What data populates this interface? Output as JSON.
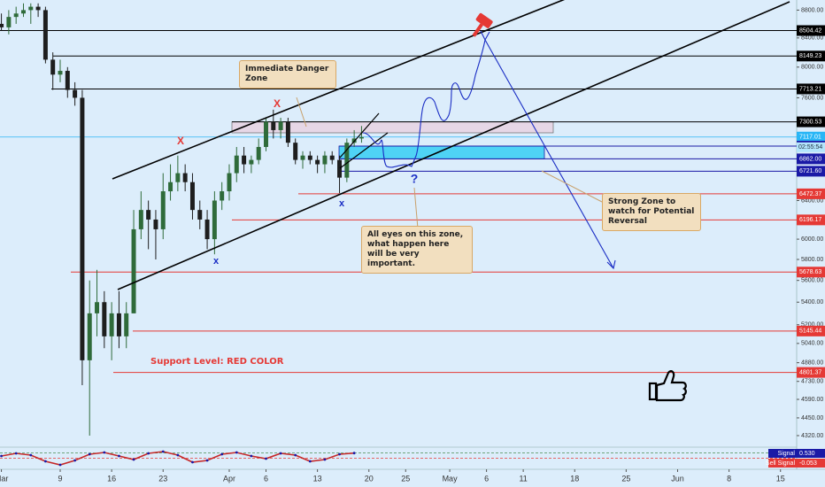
{
  "chart_data": {
    "type": "candlestick",
    "log_scale": true,
    "up_color": "#2f6b3a",
    "down_color": "#1e1e1e",
    "x": [
      0,
      1,
      2,
      3,
      4,
      5,
      6,
      7,
      8,
      9,
      10,
      11,
      12,
      13,
      14,
      15,
      16,
      17,
      18,
      19,
      20,
      21,
      22,
      23,
      24,
      25,
      26,
      27,
      28,
      29,
      30,
      31,
      32,
      33,
      34,
      35,
      36,
      37,
      38,
      39,
      40,
      41,
      42,
      43,
      44,
      45,
      46,
      47,
      48,
      49
    ],
    "open": [
      8600,
      8550,
      8700,
      8750,
      8800,
      8850,
      8800,
      8100,
      7900,
      7950,
      7700,
      7600,
      4900,
      5300,
      5400,
      5100,
      5300,
      5100,
      5300,
      6100,
      6300,
      6200,
      6100,
      6500,
      6600,
      6700,
      6600,
      6300,
      6200,
      6000,
      6400,
      6500,
      6700,
      6900,
      6800,
      6850,
      7000,
      7300,
      7200,
      7300,
      7050,
      6850,
      6900,
      6850,
      6800,
      6900,
      6850,
      6650,
      7050,
      7100
    ],
    "high": [
      8750,
      8800,
      8850,
      8900,
      8900,
      8900,
      8850,
      8200,
      8100,
      8000,
      7800,
      7700,
      5600,
      5700,
      5500,
      5400,
      5500,
      5400,
      6300,
      6500,
      6400,
      6300,
      6700,
      6800,
      6900,
      6800,
      6700,
      6400,
      6300,
      6500,
      6600,
      6800,
      7000,
      7000,
      6900,
      7100,
      7350,
      7450,
      7350,
      7350,
      7100,
      6950,
      6950,
      6900,
      6950,
      6950,
      6900,
      7100,
      7200,
      7250
    ],
    "low": [
      8500,
      8450,
      8600,
      8700,
      8600,
      8700,
      8050,
      7700,
      7800,
      7600,
      7500,
      4700,
      4320,
      5100,
      5000,
      4900,
      5000,
      5000,
      5300,
      6000,
      5900,
      5800,
      6000,
      6400,
      6500,
      6500,
      6200,
      6100,
      5900,
      5850,
      6300,
      6400,
      6600,
      6700,
      6700,
      6800,
      6950,
      7100,
      7100,
      7000,
      6800,
      6750,
      6800,
      6700,
      6700,
      6800,
      6480,
      6600,
      7000,
      7050
    ],
    "close": [
      8550,
      8700,
      8750,
      8800,
      8850,
      8800,
      8100,
      7900,
      7950,
      7700,
      7600,
      4900,
      5300,
      5400,
      5100,
      5300,
      5100,
      5300,
      6100,
      6300,
      6200,
      6100,
      6500,
      6600,
      6700,
      6600,
      6300,
      6200,
      6000,
      6400,
      6500,
      6700,
      6900,
      6800,
      6850,
      7000,
      7300,
      7200,
      7300,
      7050,
      6850,
      6900,
      6850,
      6800,
      6900,
      6850,
      6650,
      7050,
      7100,
      7117.01
    ],
    "xlim": [
      -0.19,
      108.2
    ],
    "ylim": [
      4250,
      8950
    ],
    "xticks": [
      {
        "value": 0,
        "label": "Mar"
      },
      {
        "value": 8,
        "label": "9"
      },
      {
        "value": 15,
        "label": "16"
      },
      {
        "value": 22,
        "label": "23"
      },
      {
        "value": 31,
        "label": "Apr"
      },
      {
        "value": 36,
        "label": "6"
      },
      {
        "value": 43,
        "label": "13"
      },
      {
        "value": 50,
        "label": "20"
      },
      {
        "value": 55,
        "label": "25"
      },
      {
        "value": 61,
        "label": "May"
      },
      {
        "value": 66,
        "label": "6"
      },
      {
        "value": 71,
        "label": "11"
      },
      {
        "value": 78,
        "label": "18"
      },
      {
        "value": 85,
        "label": "25"
      },
      {
        "value": 92,
        "label": "Jun"
      },
      {
        "value": 99,
        "label": "8"
      },
      {
        "value": 106,
        "label": "15"
      }
    ],
    "yticks": [
      {
        "value": 8800,
        "label": "8800.00"
      },
      {
        "value": 8400,
        "label": "8400.00"
      },
      {
        "value": 8000,
        "label": "8000.00"
      },
      {
        "value": 7600,
        "label": "7600.00"
      },
      {
        "value": 6400,
        "label": "6400.00"
      },
      {
        "value": 6000,
        "label": "6000.00"
      },
      {
        "value": 5800,
        "label": "5800.00"
      },
      {
        "value": 5600,
        "label": "5600.00"
      },
      {
        "value": 5400,
        "label": "5400.00"
      },
      {
        "value": 5200,
        "label": "5200.00"
      },
      {
        "value": 5040,
        "label": "5040.00"
      },
      {
        "value": 4880,
        "label": "4880.00"
      },
      {
        "value": 4730,
        "label": "4730.00"
      },
      {
        "value": 4590,
        "label": "4590.00"
      },
      {
        "value": 4450,
        "label": "4450.00"
      },
      {
        "value": 4320,
        "label": "4320.00"
      }
    ],
    "levels": [
      {
        "value": 8504.42,
        "color": "#000000"
      },
      {
        "value": 8149.23,
        "color": "#000000"
      },
      {
        "value": 7713.21,
        "color": "#000000"
      },
      {
        "value": 7300.53,
        "color": "#000000"
      },
      {
        "value": 7117.01,
        "color": "#29b6f6"
      },
      {
        "value": 7010.25,
        "color": "#1a1aa6"
      },
      {
        "value": 6862,
        "label": "6862.00",
        "color": "#1a1aa6"
      },
      {
        "value": 6721.6,
        "label": "6721.60",
        "color": "#1a1aa6"
      },
      {
        "value": 6472.37,
        "color": "#e53935"
      },
      {
        "value": 6196.17,
        "color": "#e53935"
      },
      {
        "value": 5678.63,
        "color": "#e53935"
      },
      {
        "value": 5145.44,
        "color": "#e53935"
      },
      {
        "value": 4801.37,
        "color": "#e53935"
      }
    ],
    "countdown": "02:55:54",
    "annotations": [
      "Immediate Danger Zone",
      "All eyes on this zone, what happen here will be very important.",
      "Strong Zone to watch for Potential Reversal",
      "Support Level: RED COLOR"
    ],
    "markers": [
      "X",
      "X",
      "x",
      "x",
      "?"
    ],
    "indicator": {
      "x": [
        0,
        2,
        4,
        6,
        8,
        10,
        12,
        14,
        16,
        18,
        20,
        22,
        24,
        26,
        28,
        30,
        32,
        34,
        36,
        38,
        40,
        42,
        44,
        46,
        48
      ],
      "values": [
        0.2,
        0.5,
        0.3,
        -0.4,
        -0.8,
        -0.3,
        0.4,
        0.6,
        0.2,
        -0.2,
        0.5,
        0.7,
        0.3,
        -0.5,
        -0.3,
        0.4,
        0.6,
        0.2,
        -0.1,
        0.5,
        0.3,
        -0.4,
        -0.2,
        0.4,
        0.53
      ],
      "ylim": [
        -1,
        1
      ],
      "signal": {
        "name": "Signal",
        "value": 0.53,
        "label": "0.530"
      },
      "sell_signal": {
        "name": "Sell Signal",
        "value": -0.053,
        "label": "-0.053"
      }
    }
  }
}
